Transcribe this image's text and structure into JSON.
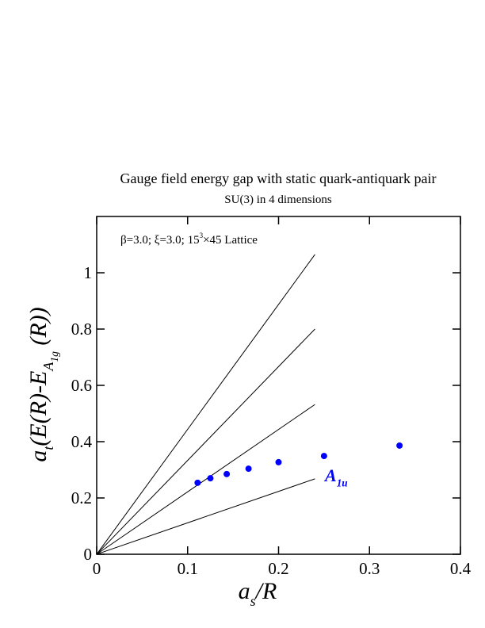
{
  "chart_data": {
    "type": "scatter",
    "title": "Gauge field energy gap with static quark-antiquark pair",
    "subtitle": "SU(3) in 4 dimensions",
    "annotation": [
      "β=3.0; ξ=3.0; 15",
      "3",
      "×45 Lattice"
    ],
    "x_label": [
      "a",
      "s",
      "/R"
    ],
    "y_label": [
      "a",
      "t",
      "(E(R)-E",
      "A",
      "1g",
      " (R))"
    ],
    "xlim": [
      0,
      0.4
    ],
    "ylim": [
      0,
      1.2
    ],
    "xticks": [
      0,
      0.1,
      0.2,
      0.3,
      0.4
    ],
    "yticks": [
      0,
      0.2,
      0.4,
      0.6,
      0.8,
      1
    ],
    "series": [
      {
        "name": [
          "A",
          "1u"
        ],
        "color": "#0000ff",
        "x": [
          0.111,
          0.125,
          0.143,
          0.167,
          0.2,
          0.25,
          0.333
        ],
        "values": [
          0.254,
          0.27,
          0.285,
          0.304,
          0.327,
          0.349,
          0.386
        ]
      }
    ],
    "lines": [
      {
        "color": "#000000",
        "x": [
          0,
          0.24
        ],
        "values": [
          0,
          1.065
        ]
      },
      {
        "color": "#000000",
        "x": [
          0,
          0.24
        ],
        "values": [
          0,
          0.8
        ]
      },
      {
        "color": "#000000",
        "x": [
          0,
          0.24
        ],
        "values": [
          0,
          0.532
        ]
      },
      {
        "color": "#000000",
        "x": [
          0,
          0.24
        ],
        "values": [
          0,
          0.268
        ]
      }
    ]
  }
}
